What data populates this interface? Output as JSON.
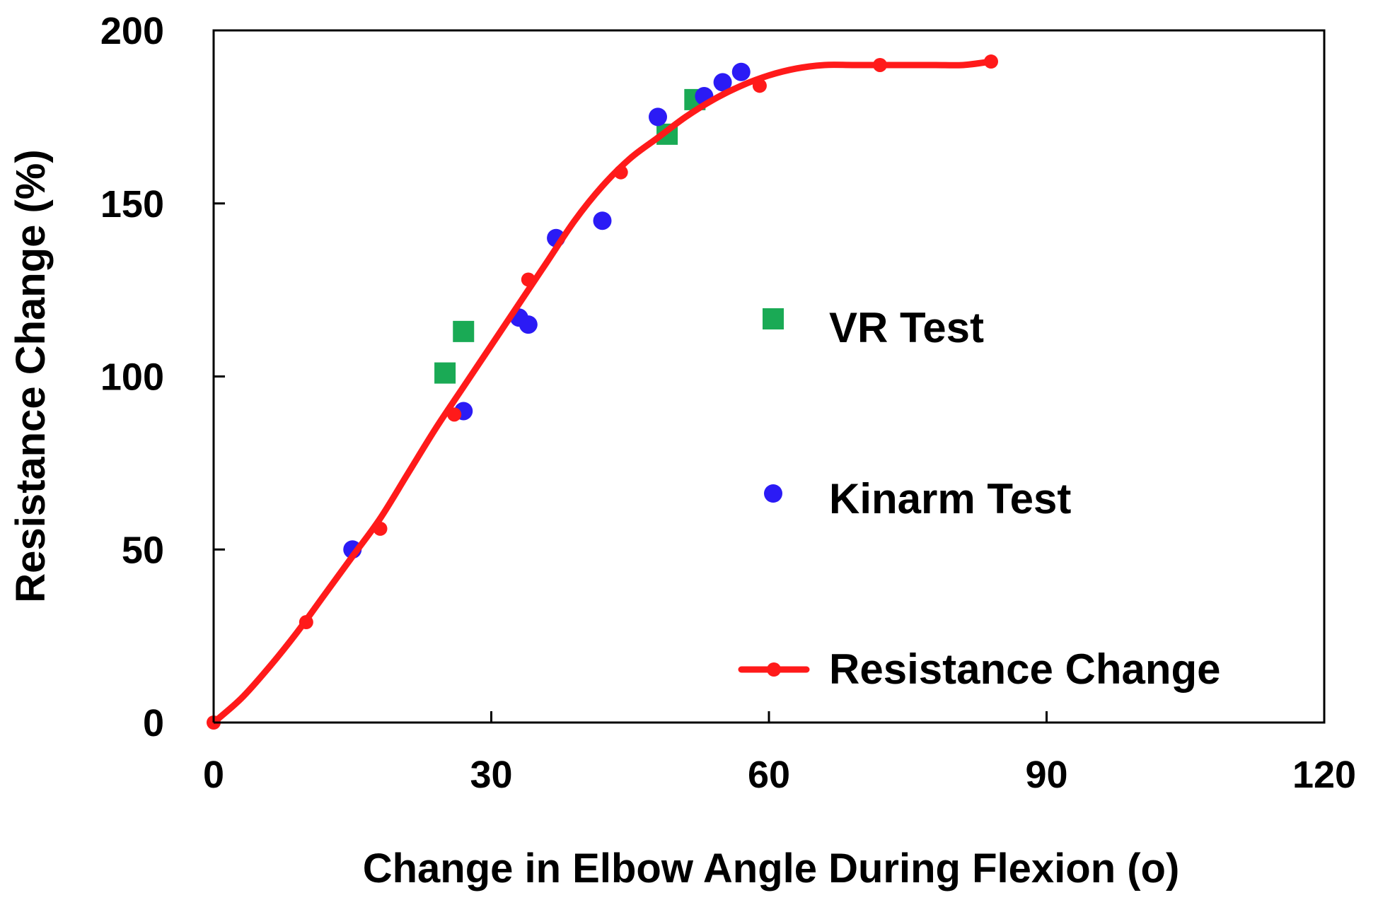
{
  "chart_data": {
    "type": "scatter",
    "title": "",
    "xlabel": "Change in Elbow Angle During Flexion (o)",
    "ylabel": "Resistance Change (%)",
    "xlim": [
      0,
      120
    ],
    "ylim": [
      0,
      200
    ],
    "xticks": [
      "0",
      "30",
      "60",
      "90",
      "120"
    ],
    "yticks": [
      "0",
      "50",
      "100",
      "150",
      "200"
    ],
    "grid": false,
    "legend_position": "center-right",
    "series": [
      {
        "name": "VR Test",
        "kind": "scatter",
        "marker": "square",
        "color": "#1aaa55",
        "x": [
          25,
          27,
          49,
          52
        ],
        "y": [
          101,
          113,
          170,
          180
        ]
      },
      {
        "name": "Kinarm Test",
        "kind": "scatter",
        "marker": "circle",
        "color": "#2b1bf5",
        "x": [
          15,
          27,
          33,
          34,
          37,
          42,
          48,
          53,
          55,
          57
        ],
        "y": [
          50,
          90,
          117,
          115,
          140,
          145,
          175,
          181,
          185,
          188
        ]
      },
      {
        "name": "Resistance Change",
        "kind": "line-with-markers",
        "marker": "circle",
        "color": "#ff1a1a",
        "x": [
          0,
          10,
          18,
          26,
          34,
          44,
          59,
          72,
          84
        ],
        "y": [
          0,
          29,
          56,
          89,
          128,
          159,
          184,
          190,
          191
        ],
        "curve_x": [
          0,
          3,
          6,
          9,
          12,
          15,
          18,
          21,
          24,
          27,
          30,
          33,
          36,
          39,
          42,
          45,
          48,
          51,
          54,
          57,
          60,
          63,
          66,
          69,
          72,
          75,
          78,
          81,
          84
        ],
        "curve_y": [
          0,
          7,
          16,
          26,
          37,
          48,
          59,
          72,
          85,
          97,
          109,
          121,
          133,
          145,
          155,
          163,
          169,
          175,
          180,
          184,
          187,
          189,
          190,
          190,
          190,
          190,
          190,
          190,
          191
        ]
      }
    ]
  }
}
